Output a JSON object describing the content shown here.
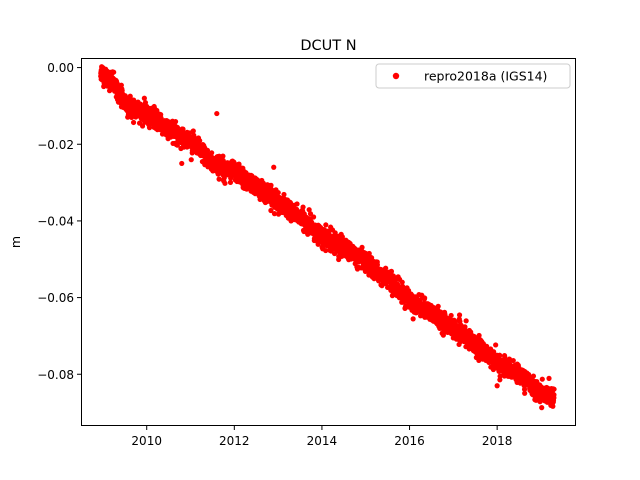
{
  "chart_data": {
    "type": "scatter",
    "title": "DCUT N",
    "xlabel": "",
    "ylabel": "m",
    "xlim": [
      2008.5,
      2019.8
    ],
    "ylim": [
      -0.0935,
      0.0025
    ],
    "x_ticks": [
      2010,
      2012,
      2014,
      2016,
      2018
    ],
    "y_ticks": [
      0.0,
      -0.02,
      -0.04,
      -0.06,
      -0.08
    ],
    "y_tick_labels": [
      "0.00",
      "−0.02",
      "−0.04",
      "−0.06",
      "−0.08"
    ],
    "grid": false,
    "legend_position": "upper right",
    "series": [
      {
        "name": "repro2018a (IGS14)",
        "color": "#ff0000",
        "marker": "circle",
        "x_range": [
          2008.95,
          2019.3
        ],
        "trend": [
          {
            "x": 2008.95,
            "y": -0.001
          },
          {
            "x": 2009.3,
            "y": -0.005
          },
          {
            "x": 2009.6,
            "y": -0.011
          },
          {
            "x": 2010.0,
            "y": -0.012
          },
          {
            "x": 2010.5,
            "y": -0.016
          },
          {
            "x": 2011.0,
            "y": -0.019
          },
          {
            "x": 2011.5,
            "y": -0.025
          },
          {
            "x": 2012.0,
            "y": -0.027
          },
          {
            "x": 2012.5,
            "y": -0.031
          },
          {
            "x": 2013.0,
            "y": -0.035
          },
          {
            "x": 2013.5,
            "y": -0.039
          },
          {
            "x": 2014.0,
            "y": -0.044
          },
          {
            "x": 2014.5,
            "y": -0.047
          },
          {
            "x": 2015.0,
            "y": -0.051
          },
          {
            "x": 2015.5,
            "y": -0.055
          },
          {
            "x": 2016.0,
            "y": -0.061
          },
          {
            "x": 2016.5,
            "y": -0.064
          },
          {
            "x": 2017.0,
            "y": -0.068
          },
          {
            "x": 2017.5,
            "y": -0.072
          },
          {
            "x": 2018.0,
            "y": -0.077
          },
          {
            "x": 2018.5,
            "y": -0.08
          },
          {
            "x": 2019.0,
            "y": -0.085
          },
          {
            "x": 2019.3,
            "y": -0.086
          }
        ],
        "scatter_sd": 0.0012,
        "outliers": [
          {
            "x": 2011.6,
            "y": -0.012
          },
          {
            "x": 2012.9,
            "y": -0.026
          },
          {
            "x": 2010.8,
            "y": -0.025
          },
          {
            "x": 2018.0,
            "y": -0.083
          }
        ]
      }
    ]
  }
}
